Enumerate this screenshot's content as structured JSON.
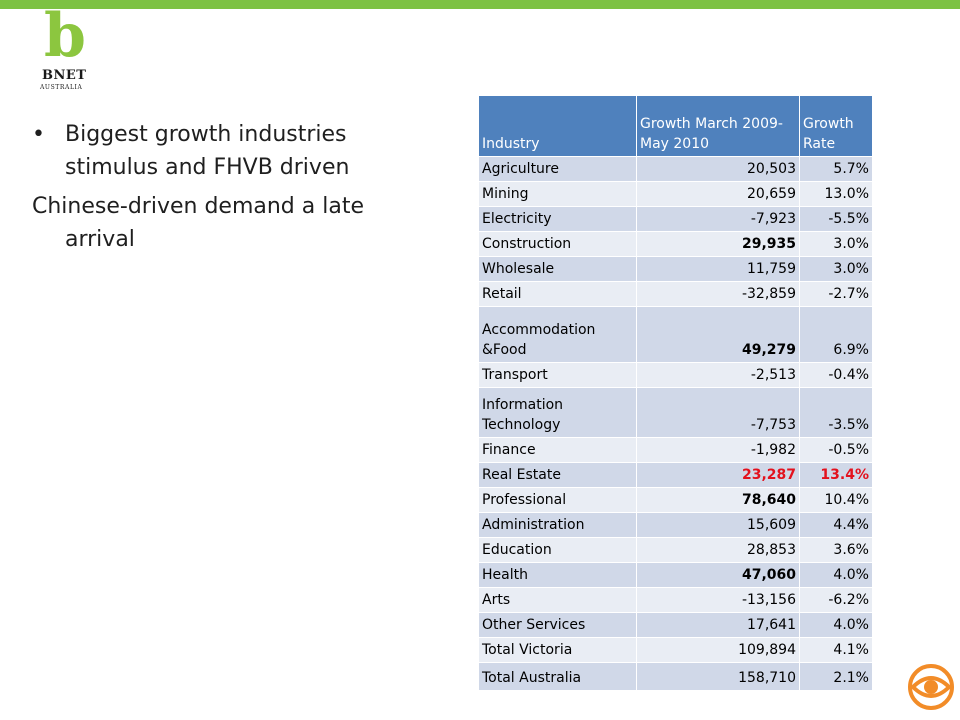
{
  "logo": {
    "letter": "b",
    "name": "BNET",
    "sub": "AUSTRALIA"
  },
  "bullets": [
    "Biggest growth industries stimulus and FHVB driven"
  ],
  "paragraph": "Chinese-driven demand a late arrival",
  "table": {
    "headers": [
      "Industry",
      "Growth March 2009-May 2010",
      "Growth Rate"
    ],
    "rows": [
      {
        "industry": "Agriculture",
        "growth": "20,503",
        "rate": "5.7%"
      },
      {
        "industry": "Mining",
        "growth": "20,659",
        "rate": "13.0%"
      },
      {
        "industry": "Electricity",
        "growth": "-7,923",
        "rate": "-5.5%"
      },
      {
        "industry": "Construction",
        "growth": "29,935",
        "rate": "3.0%"
      },
      {
        "industry": "Wholesale",
        "growth": "11,759",
        "rate": "3.0%"
      },
      {
        "industry": "Retail",
        "growth": "-32,859",
        "rate": "-2.7%"
      },
      {
        "industry": "Accommodation &Food",
        "growth": "49,279",
        "rate": "6.9%"
      },
      {
        "industry": "Transport",
        "growth": "-2,513",
        "rate": "-0.4%"
      },
      {
        "industry": "Information Technology",
        "growth": "-7,753",
        "rate": "-3.5%"
      },
      {
        "industry": "Finance",
        "growth": "-1,982",
        "rate": "-0.5%"
      },
      {
        "industry": "Real Estate",
        "growth": "23,287",
        "rate": "13.4%"
      },
      {
        "industry": "Professional",
        "growth": "78,640",
        "rate": "10.4%"
      },
      {
        "industry": "Administration",
        "growth": "15,609",
        "rate": "4.4%"
      },
      {
        "industry": "Education",
        "growth": "28,853",
        "rate": "3.6%"
      },
      {
        "industry": "Health",
        "growth": "47,060",
        "rate": "4.0%"
      },
      {
        "industry": "Arts",
        "growth": "-13,156",
        "rate": "-6.2%"
      },
      {
        "industry": "Other Services",
        "growth": "17,641",
        "rate": "4.0%"
      },
      {
        "industry": "Total Victoria",
        "growth": "109,894",
        "rate": "4.1%"
      },
      {
        "industry": "Total Australia",
        "growth": "158,710",
        "rate": "2.1%"
      }
    ]
  },
  "colors": {
    "accent_green": "#7dc243",
    "header_blue": "#4f81bd",
    "highlight_red": "#e3121e",
    "cbs_orange": "#f28c28"
  }
}
